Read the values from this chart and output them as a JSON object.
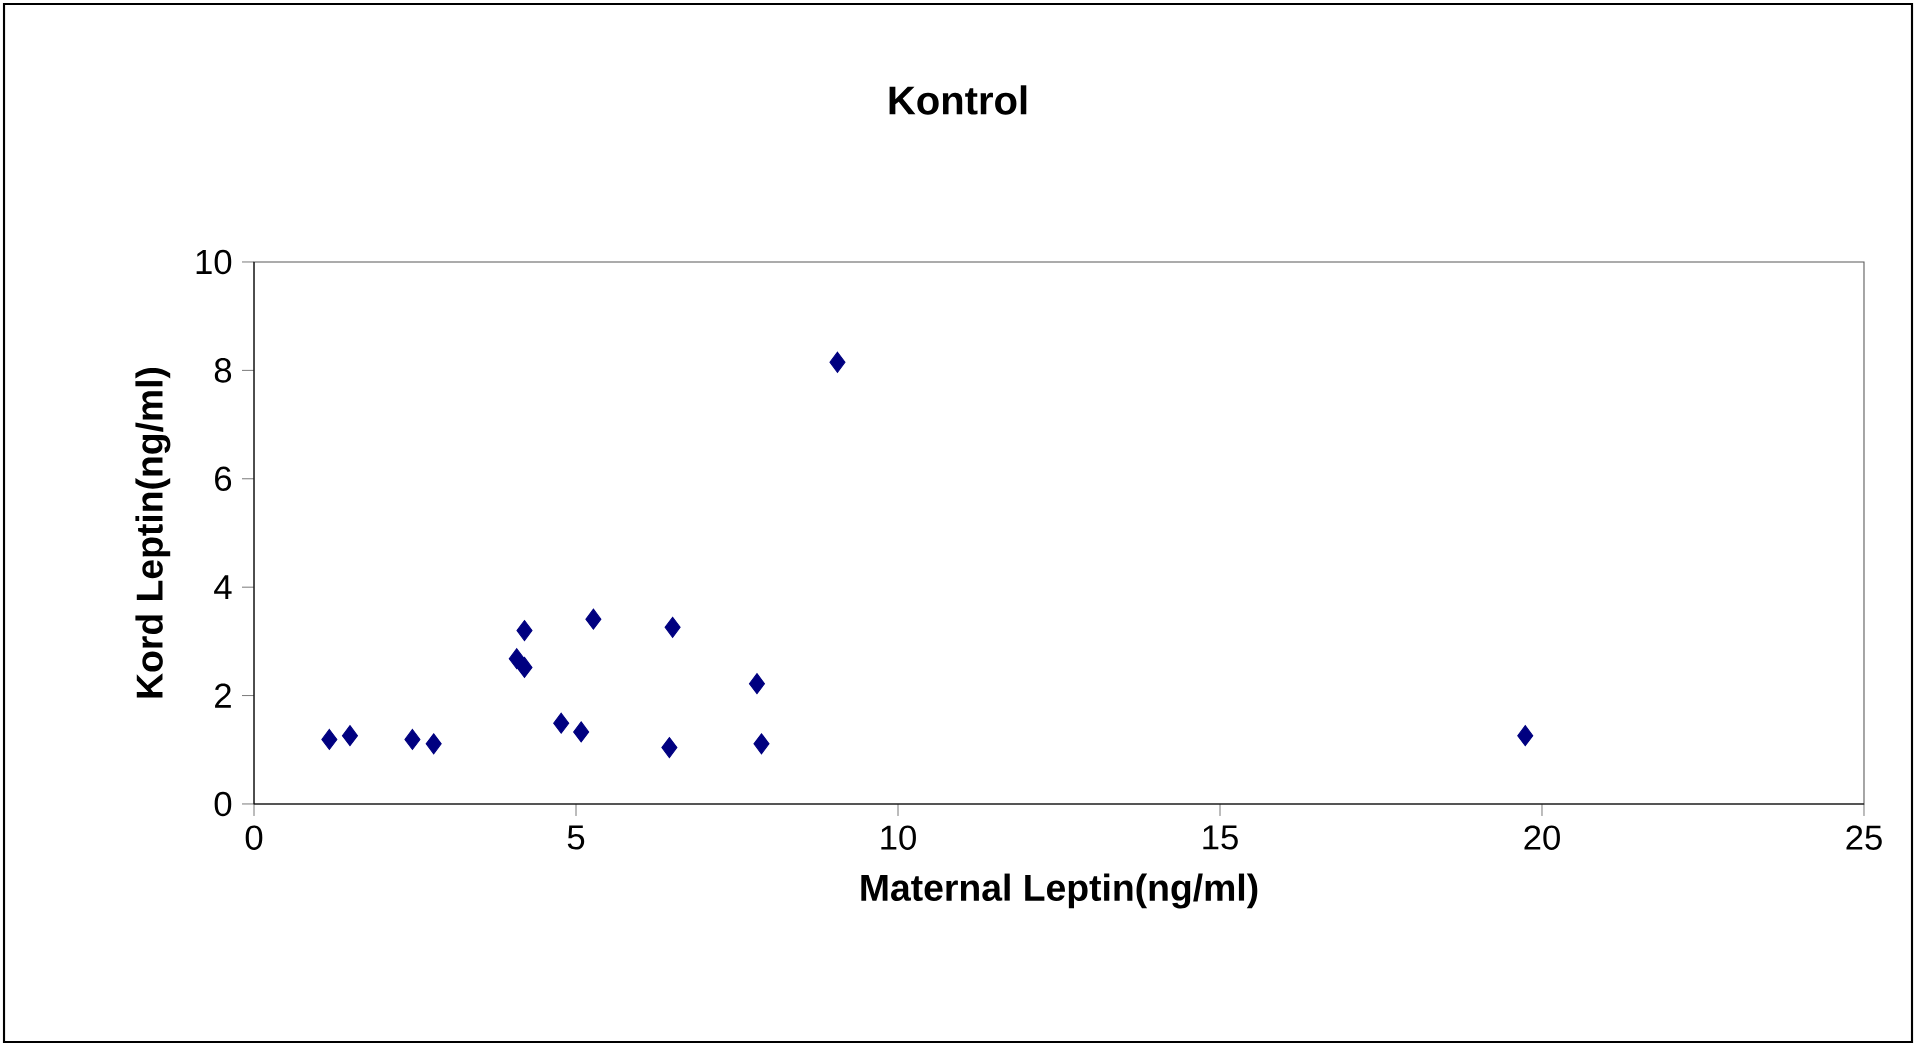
{
  "chart_data": {
    "type": "scatter",
    "title": "Kontrol",
    "xlabel": "Maternal Leptin(ng/ml)",
    "ylabel": "Kord Leptin(ng/ml)",
    "x": [
      1.17,
      1.49,
      2.46,
      2.79,
      4.2,
      4.08,
      4.2,
      4.77,
      5.08,
      5.27,
      6.5,
      6.45,
      7.81,
      7.88,
      9.06,
      19.74
    ],
    "values": [
      1.19,
      1.26,
      1.19,
      1.11,
      3.2,
      2.68,
      2.52,
      1.49,
      1.33,
      3.41,
      3.26,
      1.04,
      2.22,
      1.11,
      8.15,
      1.26
    ],
    "color": "#000080",
    "marker": "diamond",
    "xlim": [
      0,
      25
    ],
    "xticks": [
      0,
      5,
      10,
      15,
      20,
      25
    ],
    "ylim": [
      0,
      10
    ],
    "yticks": [
      0,
      2,
      4,
      6,
      8,
      10
    ]
  }
}
